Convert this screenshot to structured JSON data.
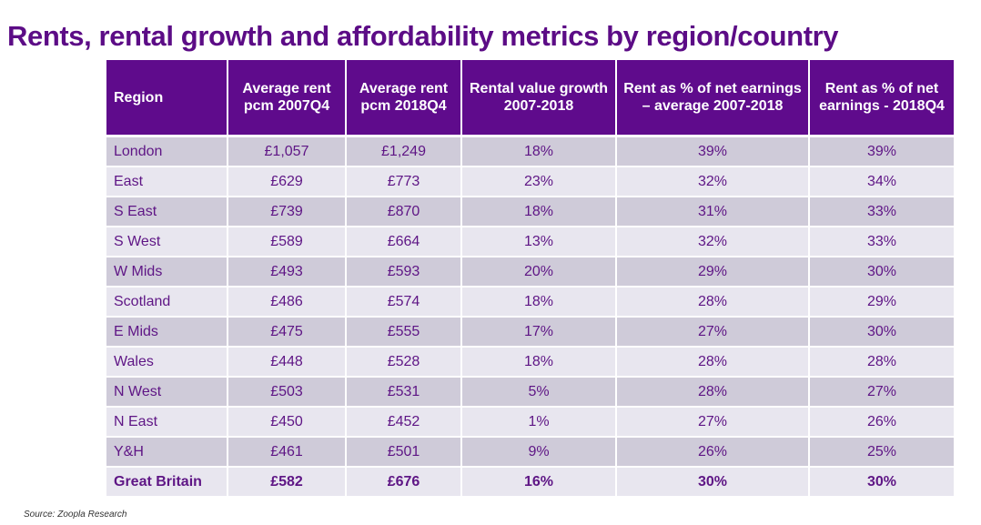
{
  "title": "Rents, rental growth and affordability metrics by region/country",
  "source": "Source: Zoopla Research",
  "colors": {
    "header_bg": "#5f0b8c",
    "title": "#5c0c86",
    "row_dark": "#cfcbd9",
    "row_light": "#e8e6ef",
    "cell_text": "#5e1585"
  },
  "table": {
    "headers": [
      "Region",
      "Average rent pcm 2007Q4",
      "Average rent pcm 2018Q4",
      "Rental value growth 2007-2018",
      "Rent as % of net earnings – average 2007-2018",
      "Rent as % of net earnings - 2018Q4"
    ],
    "rows": [
      [
        "London",
        "£1,057",
        "£1,249",
        "18%",
        "39%",
        "39%"
      ],
      [
        "East",
        "£629",
        "£773",
        "23%",
        "32%",
        "34%"
      ],
      [
        "S East",
        "£739",
        "£870",
        "18%",
        "31%",
        "33%"
      ],
      [
        "S West",
        "£589",
        "£664",
        "13%",
        "32%",
        "33%"
      ],
      [
        "W Mids",
        "£493",
        "£593",
        "20%",
        "29%",
        "30%"
      ],
      [
        "Scotland",
        "£486",
        "£574",
        "18%",
        "28%",
        "29%"
      ],
      [
        "E Mids",
        "£475",
        "£555",
        "17%",
        "27%",
        "30%"
      ],
      [
        "Wales",
        "£448",
        "£528",
        "18%",
        "28%",
        "28%"
      ],
      [
        "N West",
        "£503",
        "£531",
        "5%",
        "28%",
        "27%"
      ],
      [
        "N East",
        "£450",
        "£452",
        "1%",
        "27%",
        "26%"
      ],
      [
        "Y&H",
        "£461",
        "£501",
        "9%",
        "26%",
        "25%"
      ]
    ],
    "total": [
      "Great Britain",
      "£582",
      "£676",
      "16%",
      "30%",
      "30%"
    ]
  }
}
